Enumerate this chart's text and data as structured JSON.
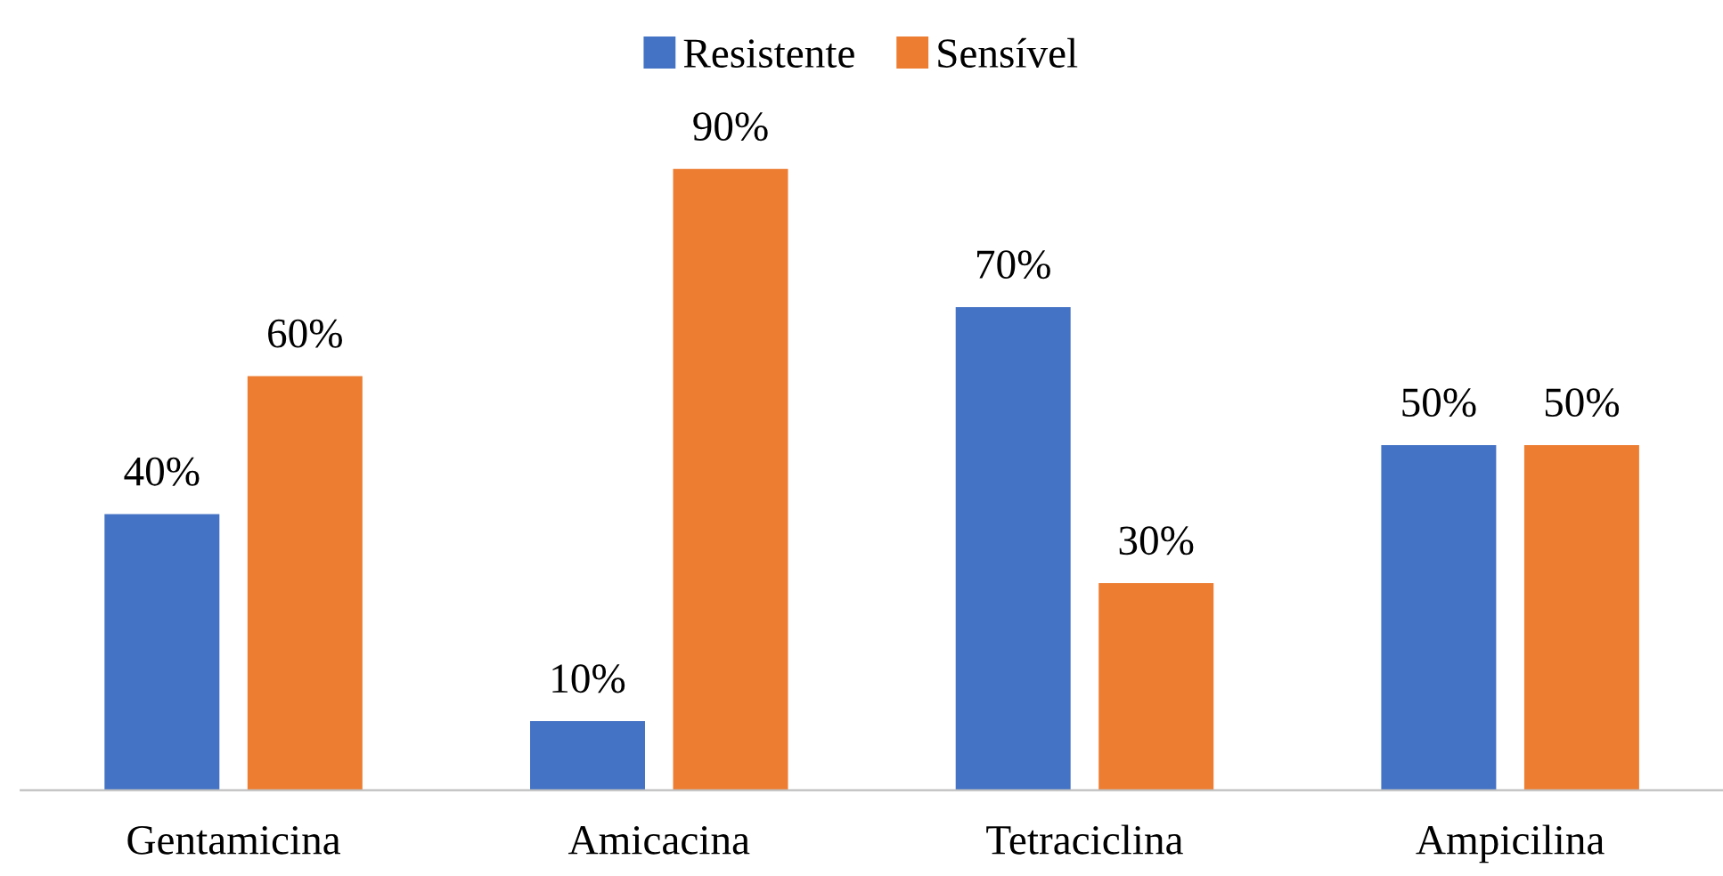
{
  "chart_data": {
    "type": "bar",
    "categories": [
      "Gentamicina",
      "Amicacina",
      "Tetraciclina",
      "Ampicilina"
    ],
    "series": [
      {
        "name": "Resistente",
        "color": "#4472c4",
        "values": [
          40,
          10,
          70,
          50
        ],
        "value_labels": [
          "40%",
          "10%",
          "70%",
          "50%"
        ]
      },
      {
        "name": "Sensível",
        "color": "#ed7d31",
        "values": [
          60,
          90,
          30,
          50
        ],
        "value_labels": [
          "60%",
          "90%",
          "30%",
          "50%"
        ]
      }
    ],
    "legend": "top"
  }
}
